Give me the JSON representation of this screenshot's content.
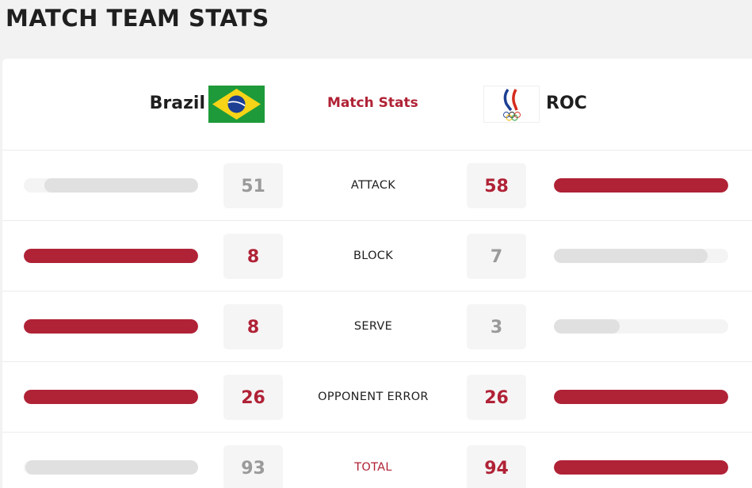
{
  "page": {
    "title": "MATCH TEAM STATS"
  },
  "header": {
    "home_team": "Brazil",
    "away_team": "ROC",
    "center_label": "Match Stats"
  },
  "colors": {
    "accent": "#b02236",
    "muted_bar": "#e0e0e0",
    "track": "#f4f4f4"
  },
  "stats": [
    {
      "label": "ATTACK",
      "home": "51",
      "away": "58",
      "home_share": 0.88,
      "away_share": 1.0,
      "leader": "away"
    },
    {
      "label": "BLOCK",
      "home": "8",
      "away": "7",
      "home_share": 1.0,
      "away_share": 0.88,
      "leader": "home"
    },
    {
      "label": "SERVE",
      "home": "8",
      "away": "3",
      "home_share": 1.0,
      "away_share": 0.375,
      "leader": "home"
    },
    {
      "label": "OPPONENT ERROR",
      "home": "26",
      "away": "26",
      "home_share": 1.0,
      "away_share": 1.0,
      "leader": "both"
    },
    {
      "label": "TOTAL",
      "home": "93",
      "away": "94",
      "home_share": 0.99,
      "away_share": 1.0,
      "leader": "away"
    }
  ]
}
